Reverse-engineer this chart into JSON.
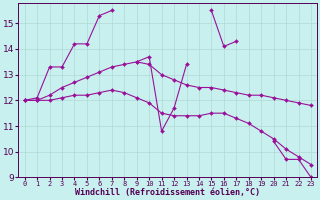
{
  "xlabel": "Windchill (Refroidissement éolien,°C)",
  "background_color": "#c8f0ee",
  "grid_color": "#b0d8d4",
  "line_color": "#991199",
  "x_hours": [
    0,
    1,
    2,
    3,
    4,
    5,
    6,
    7,
    8,
    9,
    10,
    11,
    12,
    13,
    14,
    15,
    16,
    17,
    18,
    19,
    20,
    21,
    22,
    23
  ],
  "series1": [
    12.0,
    12.1,
    13.3,
    13.3,
    14.2,
    14.2,
    15.3,
    15.5,
    null,
    13.5,
    13.7,
    10.8,
    11.7,
    13.4,
    null,
    15.5,
    14.1,
    14.3,
    null,
    null,
    10.4,
    9.7,
    9.7,
    9.0
  ],
  "series2": [
    12.0,
    12.0,
    12.2,
    12.5,
    12.7,
    12.9,
    13.1,
    13.3,
    13.4,
    13.5,
    13.4,
    13.0,
    12.8,
    12.6,
    12.5,
    12.5,
    12.4,
    12.3,
    12.2,
    12.2,
    12.1,
    12.0,
    11.9,
    11.8
  ],
  "series3": [
    12.0,
    12.0,
    12.0,
    12.1,
    12.2,
    12.2,
    12.3,
    12.4,
    12.3,
    12.1,
    11.9,
    11.5,
    11.4,
    11.4,
    11.4,
    11.5,
    11.5,
    11.3,
    11.1,
    10.8,
    10.5,
    10.1,
    9.8,
    9.5
  ],
  "ylim": [
    9,
    15.8
  ],
  "yticks": [
    9,
    10,
    11,
    12,
    13,
    14,
    15
  ],
  "xticks": [
    0,
    1,
    2,
    3,
    4,
    5,
    6,
    7,
    8,
    9,
    10,
    11,
    12,
    13,
    14,
    15,
    16,
    17,
    18,
    19,
    20,
    21,
    22,
    23
  ],
  "xlim": [
    -0.5,
    23.5
  ]
}
